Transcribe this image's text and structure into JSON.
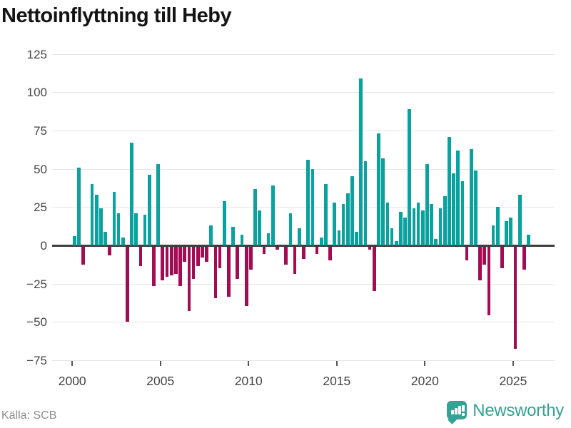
{
  "title": "Nettoinflyttning till Heby",
  "source": "Källa: SCB",
  "logo": {
    "text": "Newsworthy"
  },
  "colors": {
    "positive_bar": "#0aa29e",
    "negative_bar": "#a30b53",
    "gridline": "#e6e6e6",
    "zero_line": "#3d3d3d",
    "axis_text": "#454545",
    "logo_teal": "#34a294"
  },
  "chart_data": {
    "type": "bar",
    "title": "Nettoinflyttning till Heby",
    "unit": "persons per quarter",
    "frequency": "quarterly",
    "start_year": 2000,
    "x_axis_tick_labels": [
      "2000",
      "2005",
      "2010",
      "2015",
      "2020",
      "2025"
    ],
    "y_axis_tick_labels": [
      "125",
      "100",
      "75",
      "50",
      "25",
      "0",
      "−25",
      "−50",
      "−75"
    ],
    "y_ticks": [
      125,
      100,
      75,
      50,
      25,
      0,
      -25,
      -50,
      -75
    ],
    "ylim": [
      -75,
      125
    ],
    "grid": true,
    "legend": false,
    "series": [
      {
        "name": "Nettoinflyttning",
        "values": [
          6,
          51,
          -12,
          0,
          40,
          33,
          24,
          9,
          -6,
          35,
          21,
          5,
          -49,
          67,
          21,
          -13,
          20,
          46,
          -26,
          53,
          -22,
          -20,
          -19,
          -18,
          -26,
          -10,
          -42,
          -21,
          -13,
          -7,
          -10,
          13,
          -34,
          -14,
          29,
          -33,
          12,
          -21,
          7,
          -39,
          -15,
          37,
          23,
          -5,
          8,
          39,
          -2,
          0,
          -12,
          21,
          -18,
          11,
          -8,
          56,
          50,
          -5,
          5,
          40,
          -9,
          28,
          10,
          27,
          34,
          45,
          9,
          109,
          55,
          -2,
          -29,
          73,
          57,
          28,
          11,
          3,
          22,
          18,
          89,
          24,
          28,
          23,
          53,
          27,
          4,
          24,
          32,
          71,
          47,
          62,
          42,
          -9,
          63,
          49,
          -22,
          -12,
          -45,
          13,
          25,
          -14,
          16,
          18,
          -67,
          33,
          -15,
          7
        ]
      }
    ]
  }
}
